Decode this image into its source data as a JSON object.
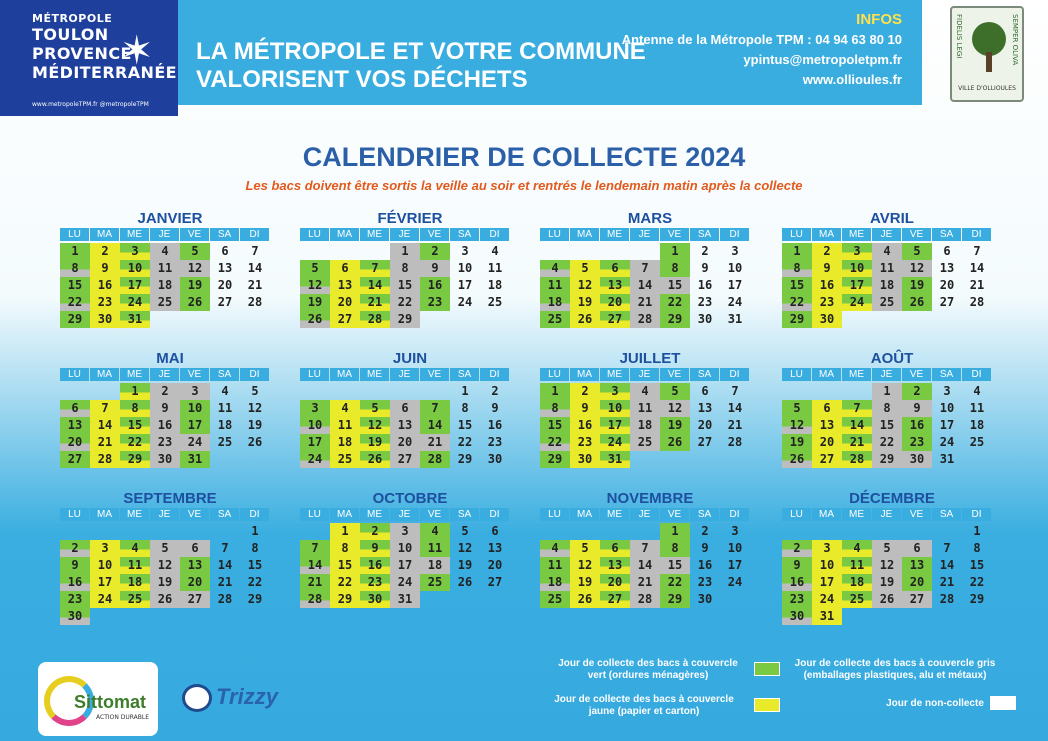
{
  "header": {
    "logo": {
      "small": "MÉTROPOLE",
      "lines": [
        "TOULON",
        "PROVENCE",
        "MÉDITERRANÉE"
      ],
      "url": "www.metropoleTPM.fr  @metropoleTPM"
    },
    "title_lines": [
      "LA MÉTROPOLE ET VOTRE COMMUNE",
      "VALORISENT VOS DÉCHETS"
    ],
    "infos_title": "INFOS",
    "infos": [
      "Antenne de la Métropole TPM : 04 94 63 80 10",
      "ypintus@metropoletpm.fr",
      "www.ollioules.fr"
    ],
    "crest_left": "FIDELIS LEGI",
    "crest_right": "SEMPER OLIVA",
    "crest_text": "VILLE D'OLLIOULES"
  },
  "title": "CALENDRIER DE COLLECTE 2024",
  "subtitle": "Les bacs doivent être sortis la veille au soir et rentrés le lendemain matin après la collecte",
  "weekdays": [
    "LU",
    "MA",
    "ME",
    "JE",
    "VE",
    "SA",
    "DI"
  ],
  "months": [
    {
      "name": "JANVIER",
      "offset": 0,
      "days": 31,
      "codes": "ggggg ggggg ggggg ggggggg ggggg ggg"
    },
    {
      "name": "FÉVRIER",
      "offset": 3,
      "days": 29
    },
    {
      "name": "MARS",
      "offset": 4,
      "days": 31
    },
    {
      "name": "AVRIL",
      "offset": 0,
      "days": 30
    },
    {
      "name": "MAI",
      "offset": 2,
      "days": 31
    },
    {
      "name": "JUIN",
      "offset": 5,
      "days": 30
    },
    {
      "name": "JUILLET",
      "offset": 0,
      "days": 31
    },
    {
      "name": "AOÛT",
      "offset": 3,
      "days": 31
    },
    {
      "name": "SEPTEMBRE",
      "offset": 6,
      "days": 30
    },
    {
      "name": "OCTOBRE",
      "offset": 1,
      "days": 31
    },
    {
      "name": "NOVEMBRE",
      "offset": 4,
      "days": 30
    },
    {
      "name": "DÉCEMBRE",
      "offset": 6,
      "days": 31
    }
  ],
  "legend": {
    "green": "Jour de collecte des bacs à couvercle vert (ordures ménagères)",
    "gray": "Jour de collecte des bacs à couvercle gris (emballages plastiques, alu et métaux)",
    "yellow": "Jour de collecte des bacs à couvercle jaune (papier et carton)",
    "none": "Jour de non-collecte"
  },
  "footer": {
    "sittomat": "Sittomat",
    "sittomat_sub": "ACTION DURABLE",
    "trizzy": "Trizzy"
  },
  "colors": {
    "green": "#7ac943",
    "yellow": "#e8ea2a",
    "gray": "#bdbdbd",
    "blue": "#3aade0",
    "title": "#2b5fa8",
    "subtitle": "#e25a1c"
  }
}
